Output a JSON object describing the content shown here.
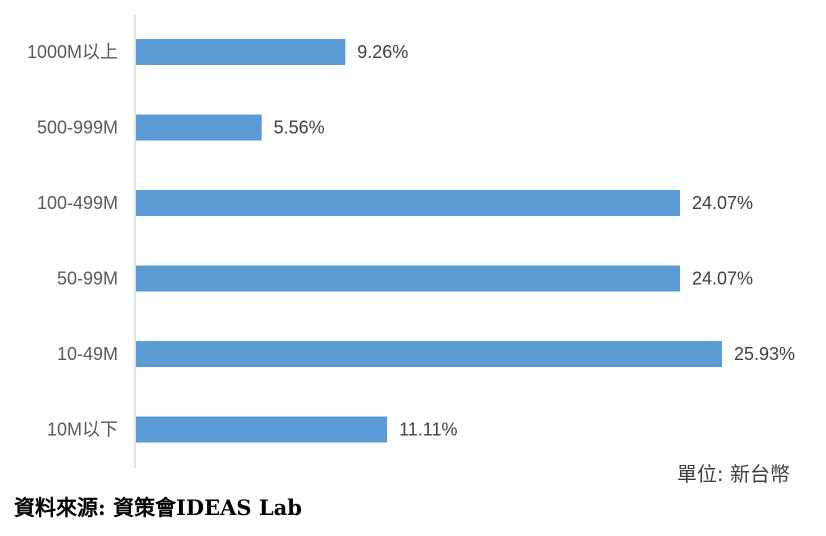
{
  "chart_data": {
    "type": "bar",
    "orientation": "horizontal",
    "categories": [
      "1000M以上",
      "500-999M",
      "100-499M",
      "50-99M",
      "10-49M",
      "10M以下"
    ],
    "values": [
      9.26,
      5.56,
      24.07,
      24.07,
      25.93,
      11.11
    ],
    "value_labels": [
      "9.26%",
      "5.56%",
      "24.07%",
      "24.07%",
      "25.93%",
      "11.11%"
    ],
    "xlim": [
      0,
      28
    ],
    "grid": false,
    "legend": "none",
    "bar_color": "#5B9BD5",
    "axis_color": "#D9D9D9"
  },
  "notes": {
    "unit": "單位: 新台幣",
    "source": "資料來源: 資策會IDEAS Lab"
  }
}
